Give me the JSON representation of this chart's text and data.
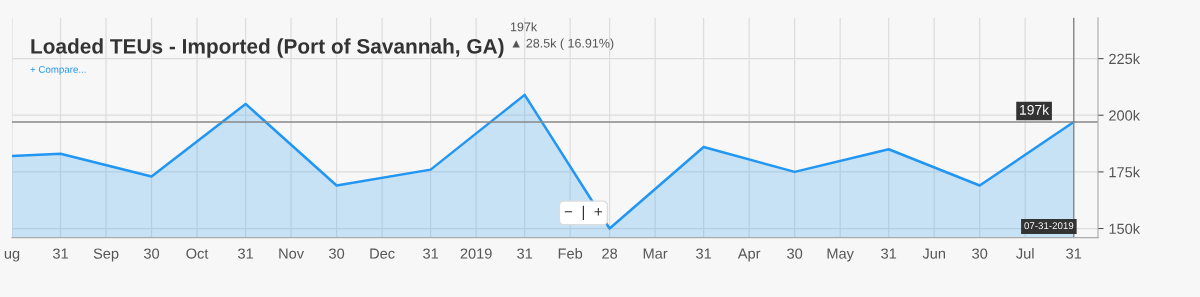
{
  "chart_data": {
    "type": "area",
    "title": "Loaded TEUs - Imported (Port of Savannah, GA)",
    "subtitle": "197k",
    "annotations": [
      "▲ 28.5k ( 16.91%)",
      "+ Compare...",
      "−  |  +"
    ],
    "x": [
      "2018-08-15",
      "2018-08-31",
      "2018-09-30",
      "2018-10-31",
      "2018-11-30",
      "2018-12-31",
      "2019-01-31",
      "2019-02-28",
      "2019-03-31",
      "2019-04-30",
      "2019-05-31",
      "2019-06-30",
      "2019-07-31"
    ],
    "series": [
      {
        "color": "#2196f3",
        "values": [
          182,
          183,
          173,
          205,
          169,
          176,
          209,
          150,
          186,
          175,
          185,
          169,
          197
        ]
      }
    ],
    "xlim": [
      "2018-08-15",
      "2019-08-08"
    ],
    "xticks": [
      {
        "value": "2018-08-15",
        "label": "ug"
      },
      {
        "value": "2018-08-31",
        "label": "31"
      },
      {
        "value": "2018-09-15",
        "label": "Sep"
      },
      {
        "value": "2018-09-30",
        "label": "30"
      },
      {
        "value": "2018-10-15",
        "label": "Oct"
      },
      {
        "value": "2018-10-31",
        "label": "31"
      },
      {
        "value": "2018-11-15",
        "label": "Nov"
      },
      {
        "value": "2018-11-30",
        "label": "30"
      },
      {
        "value": "2018-12-15",
        "label": "Dec"
      },
      {
        "value": "2018-12-31",
        "label": "31"
      },
      {
        "value": "2019-01-15",
        "label": "2019"
      },
      {
        "value": "2019-01-31",
        "label": "31"
      },
      {
        "value": "2019-02-15",
        "label": "Feb"
      },
      {
        "value": "2019-02-28",
        "label": "28"
      },
      {
        "value": "2019-03-15",
        "label": "Mar"
      },
      {
        "value": "2019-03-31",
        "label": "31"
      },
      {
        "value": "2019-04-15",
        "label": "Apr"
      },
      {
        "value": "2019-04-30",
        "label": "30"
      },
      {
        "value": "2019-05-15",
        "label": "May"
      },
      {
        "value": "2019-05-31",
        "label": "31"
      },
      {
        "value": "2019-06-15",
        "label": "Jun"
      },
      {
        "value": "2019-06-30",
        "label": "30"
      },
      {
        "value": "2019-07-15",
        "label": "Jul"
      },
      {
        "value": "2019-07-31",
        "label": "31"
      }
    ],
    "ylim": [
      146,
      243
    ],
    "yticks": [
      {
        "value": 150,
        "label": "150k"
      },
      {
        "value": 175,
        "label": "175k"
      },
      {
        "value": 200,
        "label": "200k"
      },
      {
        "value": 225,
        "label": "225k"
      }
    ],
    "ref_lines": [
      {
        "axis": "y",
        "value": 197,
        "label": "197k",
        "color": "#888888"
      },
      {
        "axis": "x",
        "value": "2019-07-31",
        "label": "07-31-2019",
        "color": "#888888"
      }
    ],
    "grid": true,
    "legend": false,
    "marker": "none",
    "line_style": "solid"
  }
}
